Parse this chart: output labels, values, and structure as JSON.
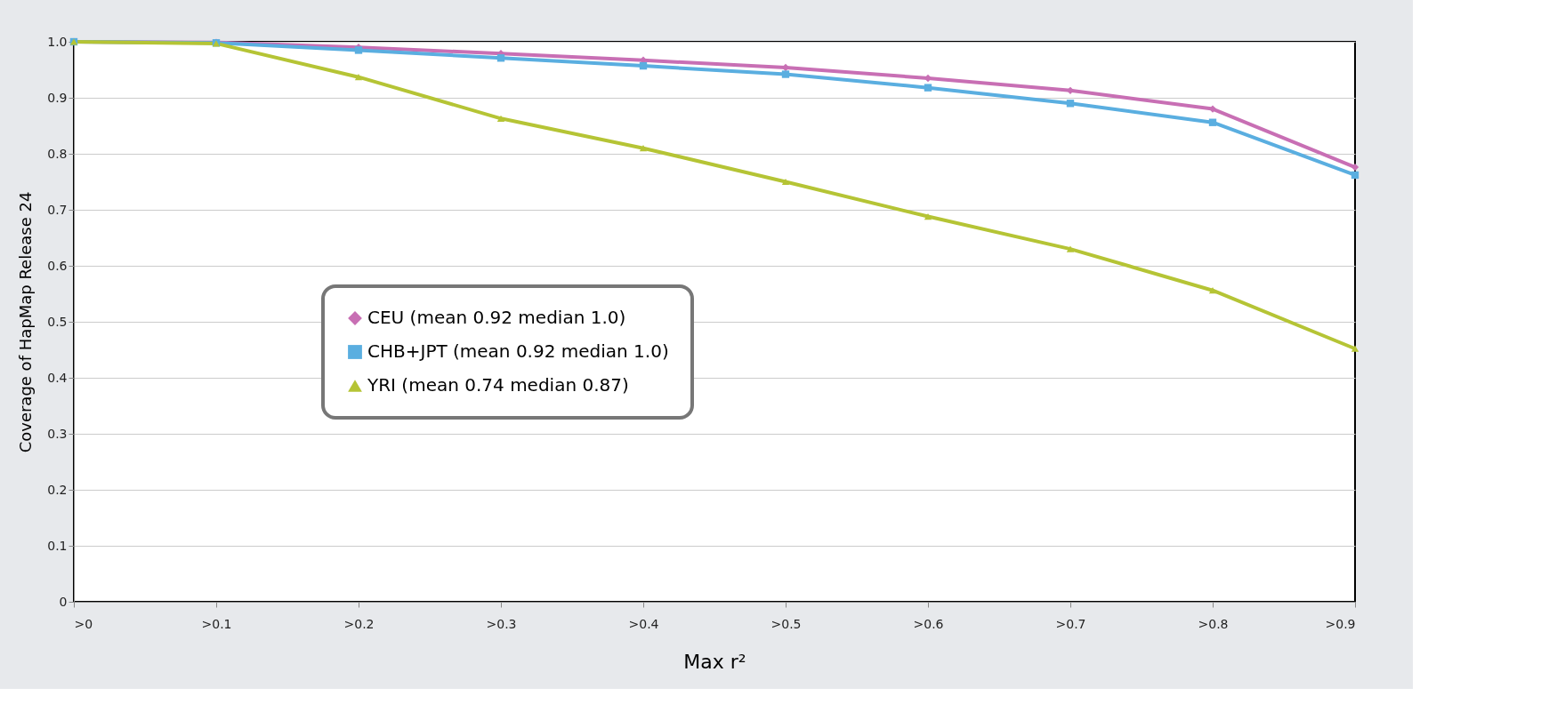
{
  "chart_data": {
    "type": "line",
    "xlabel": "Max r²",
    "ylabel": "Coverage of HapMap Release 24",
    "categories": [
      ">0",
      ">0.1",
      ">0.2",
      ">0.3",
      ">0.4",
      ">0.5",
      ">0.6",
      ">0.7",
      ">0.8",
      ">0.9"
    ],
    "series": [
      {
        "name": "CEU (mean 0.92 median 1.0)",
        "color": "#c86fb4",
        "marker": "diamond",
        "values": [
          1.0,
          0.999,
          0.99,
          0.979,
          0.967,
          0.954,
          0.935,
          0.913,
          0.88,
          0.776
        ]
      },
      {
        "name": "CHB+JPT (mean 0.92 median 1.0)",
        "color": "#5aaee0",
        "marker": "square",
        "values": [
          1.0,
          0.998,
          0.985,
          0.971,
          0.957,
          0.942,
          0.918,
          0.89,
          0.856,
          0.762
        ]
      },
      {
        "name": "YRI (mean 0.74 median 0.87)",
        "color": "#b5c435",
        "marker": "triangle",
        "values": [
          1.0,
          0.997,
          0.937,
          0.863,
          0.81,
          0.75,
          0.688,
          0.63,
          0.556,
          0.452
        ]
      }
    ],
    "ylim": [
      0,
      1.0
    ],
    "yticks": [
      0,
      0.1,
      0.2,
      0.3,
      0.4,
      0.5,
      0.6,
      0.7,
      0.8,
      0.9,
      {
        "value": 1.0,
        "label": "1.0"
      }
    ],
    "grid": "y",
    "legend": "center",
    "line_style": "solid"
  }
}
